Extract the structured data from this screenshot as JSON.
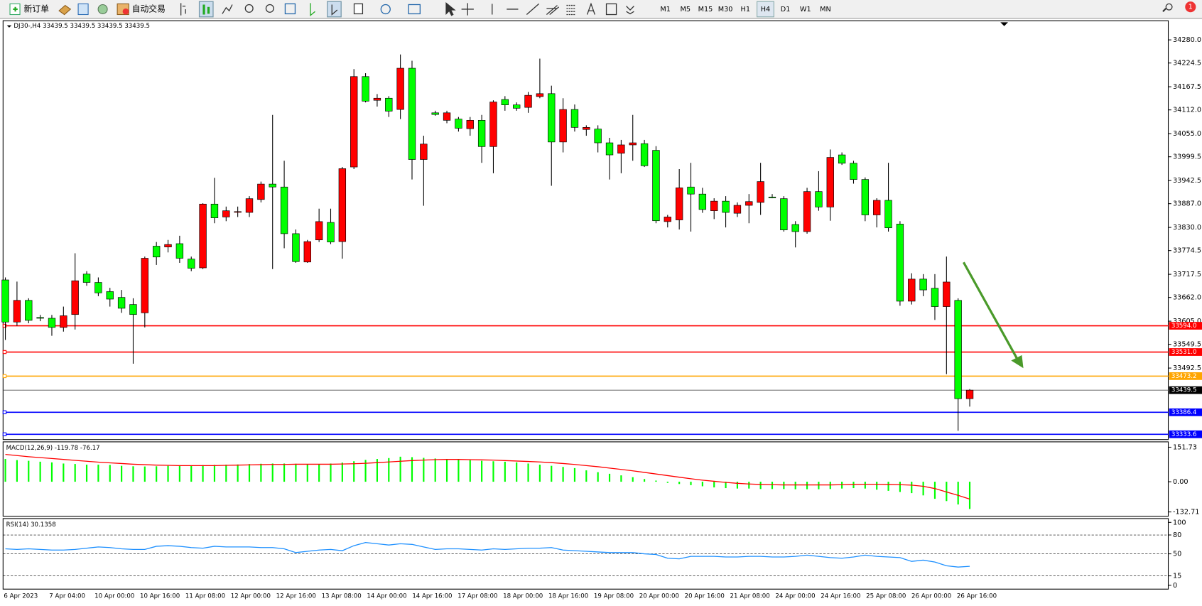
{
  "toolbar": {
    "new_order": "新订单",
    "auto_trading": "自动交易",
    "timeframes": [
      "M1",
      "M5",
      "M15",
      "M30",
      "H1",
      "H4",
      "D1",
      "W1",
      "MN"
    ],
    "active_timeframe": 5,
    "notifications": 1
  },
  "chart_data": [
    {
      "type": "candlestick",
      "title": "DJ30-,H4 33439.5 33439.5 33439.5 33439.5",
      "up_color": "#ff0000",
      "down_color": "#00ff00",
      "open": [
        33704,
        33603,
        33655,
        33614,
        33612,
        33590,
        33621,
        33718,
        33698,
        33676,
        33662,
        33645,
        33625,
        33785,
        33783,
        33791,
        33754,
        33733,
        33886,
        33855,
        33867,
        33866,
        33897,
        33934,
        33927,
        33815,
        33747,
        33800,
        33842,
        33796,
        33975,
        34192,
        34135,
        34140,
        34113,
        34212,
        33993,
        34105,
        34087,
        34090,
        34067,
        34087,
        34024,
        34137,
        34124,
        34118,
        34144,
        34151,
        34035,
        34113,
        34065,
        34066,
        34033,
        34008,
        34028,
        34031,
        34015,
        33844,
        33848,
        33927,
        33910,
        33870,
        33893,
        33864,
        33883,
        33890,
        33903,
        33899,
        33837,
        33820,
        33916,
        33879,
        34004,
        33984,
        33945,
        33860,
        33895,
        33838,
        33653,
        33706,
        33684,
        33640,
        33655,
        33419
      ],
      "high": [
        33710,
        33700,
        33660,
        33620,
        33620,
        33640,
        33768,
        33725,
        33710,
        33685,
        33680,
        33660,
        33760,
        33795,
        33800,
        33810,
        33760,
        33888,
        33949,
        33880,
        33880,
        33905,
        33940,
        34100,
        33990,
        33825,
        33800,
        33875,
        33875,
        33975,
        34210,
        34200,
        34150,
        34145,
        34245,
        34230,
        34050,
        34110,
        34110,
        34095,
        34095,
        34100,
        34135,
        34145,
        34130,
        34155,
        34235,
        34170,
        34140,
        34125,
        34075,
        34075,
        34045,
        34040,
        34100,
        34040,
        34025,
        33860,
        33970,
        33985,
        33925,
        33900,
        33905,
        33890,
        33910,
        33985,
        33910,
        33905,
        33845,
        33925,
        33965,
        34017,
        34010,
        33990,
        33950,
        33900,
        33985,
        33845,
        33720,
        33718,
        33718,
        33760,
        33660,
        33442
      ],
      "low": [
        33560,
        33594,
        33600,
        33605,
        33570,
        33580,
        33585,
        33690,
        33665,
        33640,
        33625,
        33503,
        33590,
        33740,
        33770,
        33745,
        33725,
        33730,
        33840,
        33845,
        33855,
        33855,
        33890,
        33730,
        33780,
        33745,
        33745,
        33795,
        33790,
        33755,
        33970,
        34130,
        34120,
        34095,
        34090,
        33945,
        33882,
        34098,
        34080,
        34060,
        34050,
        33985,
        33960,
        34110,
        34110,
        34105,
        34140,
        33930,
        34010,
        34060,
        34050,
        34010,
        33945,
        33960,
        33990,
        33975,
        33840,
        33830,
        33825,
        33820,
        33865,
        33850,
        33830,
        33855,
        33840,
        33860,
        33900,
        33820,
        33782,
        33815,
        33870,
        33846,
        33980,
        33935,
        33845,
        33830,
        33820,
        33642,
        33645,
        33665,
        33608,
        33478,
        33342,
        33400
      ],
      "close": [
        33603,
        33655,
        33607,
        33612,
        33590,
        33618,
        33702,
        33698,
        33673,
        33658,
        33636,
        33621,
        33756,
        33759,
        33789,
        33756,
        33732,
        33886,
        33853,
        33870,
        33868,
        33899,
        33934,
        33927,
        33815,
        33748,
        33796,
        33844,
        33795,
        33971,
        34192,
        34133,
        34140,
        34109,
        34212,
        33993,
        34030,
        34101,
        34105,
        34068,
        34087,
        34024,
        34131,
        34124,
        34116,
        34147,
        34151,
        34035,
        34113,
        34070,
        34070,
        34033,
        34004,
        34028,
        34033,
        33978,
        33846,
        33855,
        33925,
        33910,
        33873,
        33893,
        33866,
        33883,
        33892,
        33940,
        33901,
        33824,
        33820,
        33916,
        33879,
        33998,
        33984,
        33945,
        33860,
        33895,
        33829,
        33653,
        33706,
        33680,
        33640,
        33699,
        33419,
        33439.5
      ],
      "ylim": [
        33321,
        34326
      ],
      "yticks": [
        {
          "value": 34280,
          "label": "34280.0"
        },
        {
          "value": 34224.5,
          "label": "34224.5"
        },
        {
          "value": 34167.5,
          "label": "34167.5"
        },
        {
          "value": 34112,
          "label": "34112.0"
        },
        {
          "value": 34055,
          "label": "34055.0"
        },
        {
          "value": 33999.5,
          "label": "33999.5"
        },
        {
          "value": 33942.5,
          "label": "33942.5"
        },
        {
          "value": 33887,
          "label": "33887.0"
        },
        {
          "value": 33830,
          "label": "33830.0"
        },
        {
          "value": 33774.5,
          "label": "33774.5"
        },
        {
          "value": 33717.5,
          "label": "33717.5"
        },
        {
          "value": 33662,
          "label": "33662.0"
        },
        {
          "value": 33605,
          "label": "33605.0"
        },
        {
          "value": 33549.5,
          "label": "33549.5"
        },
        {
          "value": 33492.5,
          "label": "33492.5"
        }
      ],
      "levels": [
        {
          "value": 33594,
          "label": "33594.0",
          "color": "#ff0000"
        },
        {
          "value": 33531,
          "label": "33531.0",
          "color": "#ff0000"
        },
        {
          "value": 33473.2,
          "label": "33473.2",
          "color": "#ffa500"
        },
        {
          "value": 33386.4,
          "label": "33386.4",
          "color": "#0000ff"
        },
        {
          "value": 33333.6,
          "label": "33333.6",
          "color": "#0000ff"
        }
      ],
      "last_price": 33439.5,
      "xtick_labels": [
        "6 Apr 2023",
        "7 Apr 04:00",
        "10 Apr 00:00",
        "10 Apr 16:00",
        "11 Apr 08:00",
        "12 Apr 00:00",
        "12 Apr 16:00",
        "13 Apr 08:00",
        "14 Apr 00:00",
        "14 Apr 16:00",
        "17 Apr 08:00",
        "18 Apr 00:00",
        "18 Apr 16:00",
        "19 Apr 08:00",
        "20 Apr 00:00",
        "20 Apr 16:00",
        "21 Apr 08:00",
        "24 Apr 00:00",
        "24 Apr 16:00",
        "25 Apr 08:00",
        "26 Apr 00:00",
        "26 Apr 16:00"
      ]
    },
    {
      "type": "macd",
      "title": "MACD(12,26,9) -119.78 -76.17",
      "color": "#00ff00",
      "signal_color": "#ff0000",
      "values": [
        100,
        95,
        92,
        88,
        85,
        80,
        78,
        75,
        75,
        74,
        70,
        68,
        67,
        68,
        70,
        70,
        72,
        73,
        74,
        75,
        76,
        78,
        79,
        80,
        80,
        79,
        78,
        78,
        80,
        84,
        90,
        96,
        100,
        104,
        110,
        108,
        105,
        102,
        100,
        98,
        95,
        92,
        90,
        88,
        85,
        80,
        75,
        70,
        65,
        60,
        50,
        42,
        35,
        28,
        20,
        12,
        5,
        -5,
        -10,
        -15,
        -20,
        -25,
        -28,
        -30,
        -30,
        -32,
        -32,
        -32,
        -33,
        -33,
        -33,
        -32,
        -30,
        -28,
        -30,
        -35,
        -40,
        -45,
        -50,
        -60,
        -75,
        -85,
        -100,
        -119.78
      ],
      "signal": [
        120,
        115,
        110,
        106,
        102,
        98,
        94,
        90,
        86,
        83,
        80,
        77,
        75,
        73,
        72,
        71,
        71,
        71,
        71,
        72,
        73,
        74,
        75,
        76,
        76,
        77,
        77,
        77,
        77,
        78,
        79,
        81,
        84,
        87,
        90,
        93,
        95,
        97,
        98,
        98,
        97,
        96,
        95,
        93,
        91,
        89,
        87,
        84,
        80,
        76,
        71,
        66,
        60,
        54,
        48,
        41,
        34,
        27,
        20,
        13,
        7,
        2,
        -3,
        -7,
        -10,
        -12,
        -13,
        -14,
        -14,
        -14,
        -14,
        -14,
        -13,
        -12,
        -11,
        -11,
        -12,
        -13,
        -15,
        -20,
        -30,
        -45,
        -60,
        -76.17
      ],
      "ylim": [
        -151.7,
        175.3
      ],
      "yticks": [
        151.73,
        {
          "value": 0,
          "label": "0.00"
        },
        -132.71
      ]
    },
    {
      "type": "line",
      "title": "RSI(14) 30.1358",
      "color": "#1e90ff",
      "values": [
        58,
        57,
        58,
        57,
        56,
        56,
        57,
        59,
        61,
        60,
        58,
        57,
        57,
        62,
        63,
        62,
        60,
        59,
        62,
        61,
        61,
        61,
        60,
        60,
        58,
        52,
        54,
        56,
        57,
        55,
        63,
        68,
        66,
        64,
        66,
        65,
        61,
        57,
        58,
        58,
        57,
        56,
        58,
        57,
        58,
        59,
        59,
        60,
        56,
        55,
        54,
        53,
        52,
        52,
        52,
        50,
        49,
        43,
        42,
        46,
        46,
        46,
        45,
        45,
        46,
        46,
        45,
        45,
        46,
        48,
        46,
        44,
        43,
        45,
        48,
        46,
        45,
        44,
        38,
        40,
        37,
        31,
        29,
        30.1358
      ],
      "ylim": [
        -6.1,
        106.1
      ],
      "yticks": [
        100,
        80,
        50,
        15,
        0
      ],
      "levels": [
        80,
        50,
        15
      ]
    }
  ]
}
